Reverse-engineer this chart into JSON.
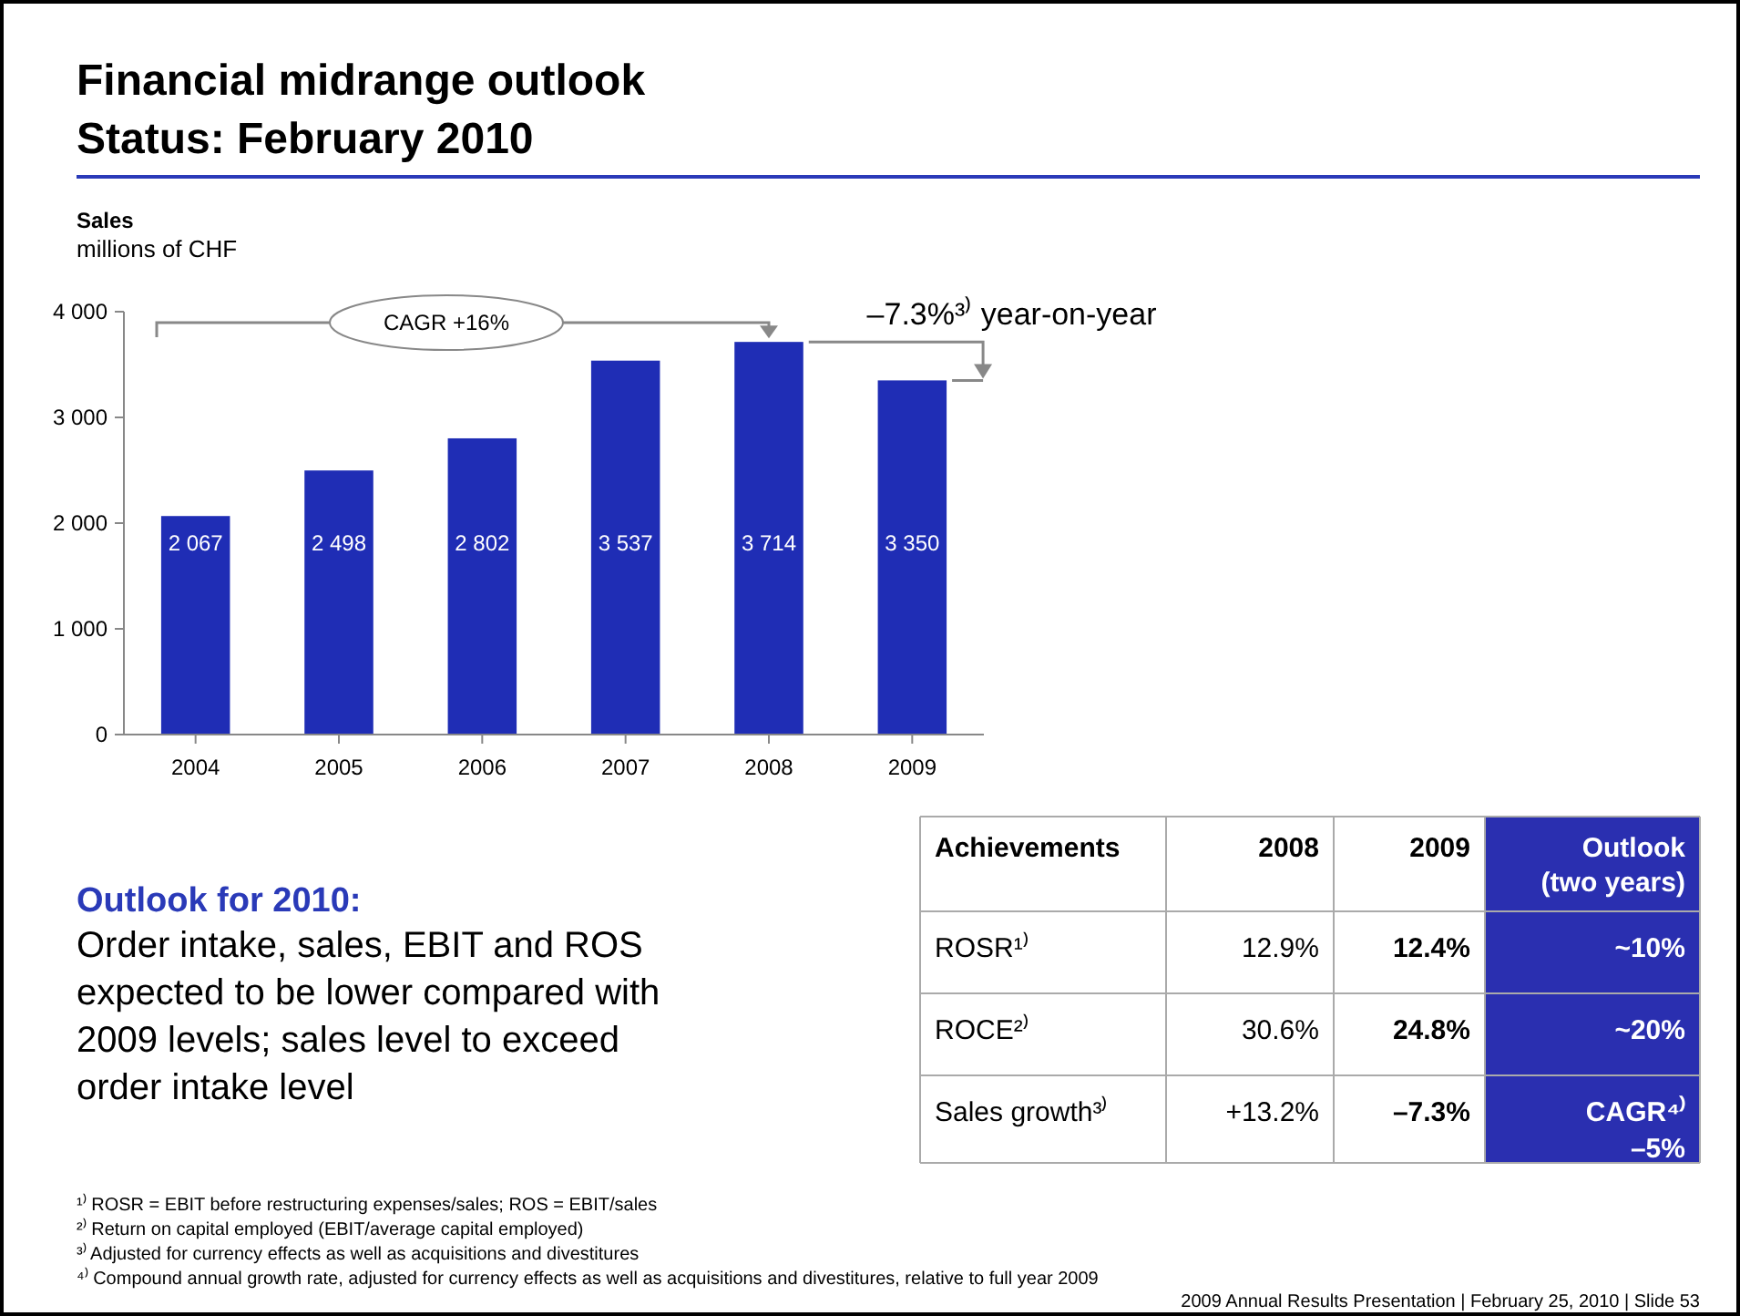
{
  "chart_data": [
    {
      "type": "bar",
      "title": "Financial midrange outlook",
      "subtitle": "Status: February 2010",
      "ylabel": "Sales",
      "categories": [
        "2004",
        "2005",
        "2006",
        "2007",
        "2008",
        "2009"
      ],
      "values": [
        2067,
        2498,
        2802,
        3537,
        3714,
        3350
      ],
      "value_labels": [
        "2 067",
        "2 498",
        "2 802",
        "3 537",
        "3 714",
        "3 350"
      ],
      "color": "#1f2db5",
      "ylim": [
        0,
        4000
      ],
      "yticks": [
        0,
        {
          "value": 1000,
          "label": "1 000"
        },
        {
          "value": 2000,
          "label": "2 000"
        },
        {
          "value": 3000,
          "label": "3 000"
        },
        {
          "value": 4000,
          "label": "4 000"
        }
      ],
      "grid": false,
      "annotations": [
        "millions of CHF",
        "CAGR +16%",
        {
          "text": "–7.3%³⁾ year-on-year",
          "x": "2009",
          "y": 3350
        },
        "2009 Annual Results Presentation | February 25, 2010 | Slide 53"
      ]
    },
    {
      "type": "other",
      "title": "Outlook for 2010:",
      "annotations": [
        "Order intake, sales, EBIT and ROS expected to be lower compared with 2009 levels; sales level to exceed order intake level",
        "¹⁾ ROSR = EBIT before restructuring expenses/sales; ROS = EBIT/sales",
        "²⁾ Return on capital employed (EBIT/average capital employed)",
        "³⁾ Adjusted for currency effects as well as acquisitions and divestitures",
        "⁴⁾ Compound annual growth rate, adjusted for currency effects as well as acquisitions and divestitures, relative to full year 2009"
      ]
    },
    {
      "type": "other",
      "categories": [
        "Achievements",
        "2008",
        "2009",
        "Outlook (two years)"
      ],
      "y_categories": [
        "ROSR¹⁾",
        "ROCE²⁾",
        "Sales growth³⁾"
      ],
      "cell_labels": [
        [
          "12.9%",
          "12.4%",
          "~10%"
        ],
        [
          "30.6%",
          "24.8%",
          "~20%"
        ],
        [
          "+13.2%",
          "–7.3%",
          "CAGR⁴⁾ –5%"
        ]
      ]
    }
  ]
}
